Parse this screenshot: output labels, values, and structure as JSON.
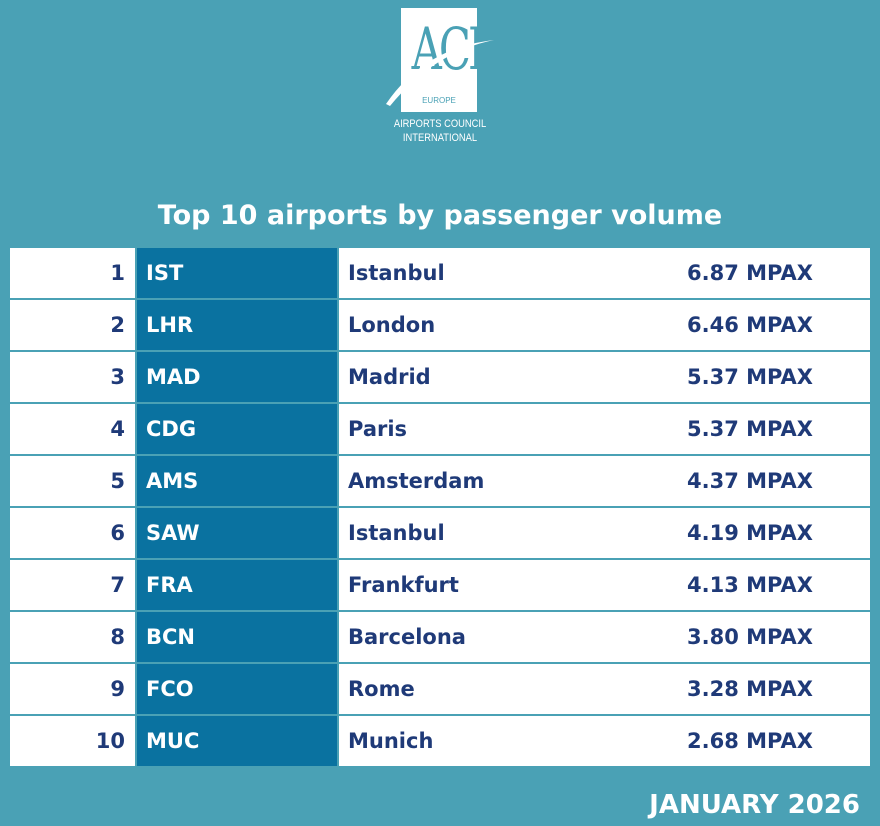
{
  "logo": {
    "acronym": "ACI",
    "region": "EUROPE",
    "line1": "AIRPORTS COUNCIL",
    "line2": "INTERNATIONAL"
  },
  "title": "Top 10 airports by passenger volume",
  "rows": [
    {
      "rank": "1",
      "code": "IST",
      "city": "Istanbul",
      "value": "6.87 MPAX"
    },
    {
      "rank": "2",
      "code": "LHR",
      "city": "London",
      "value": "6.46 MPAX"
    },
    {
      "rank": "3",
      "code": "MAD",
      "city": "Madrid",
      "value": "5.37 MPAX"
    },
    {
      "rank": "4",
      "code": "CDG",
      "city": "Paris",
      "value": "5.37 MPAX"
    },
    {
      "rank": "5",
      "code": "AMS",
      "city": "Amsterdam",
      "value": "4.37 MPAX"
    },
    {
      "rank": "6",
      "code": "SAW",
      "city": "Istanbul",
      "value": "4.19 MPAX"
    },
    {
      "rank": "7",
      "code": "FRA",
      "city": "Frankfurt",
      "value": "4.13 MPAX"
    },
    {
      "rank": "8",
      "code": "BCN",
      "city": "Barcelona",
      "value": "3.80 MPAX"
    },
    {
      "rank": "9",
      "code": "FCO",
      "city": "Rome",
      "value": "3.28 MPAX"
    },
    {
      "rank": "10",
      "code": "MUC",
      "city": "Munich",
      "value": "2.68 MPAX"
    }
  ],
  "date": "JANUARY 2026"
}
